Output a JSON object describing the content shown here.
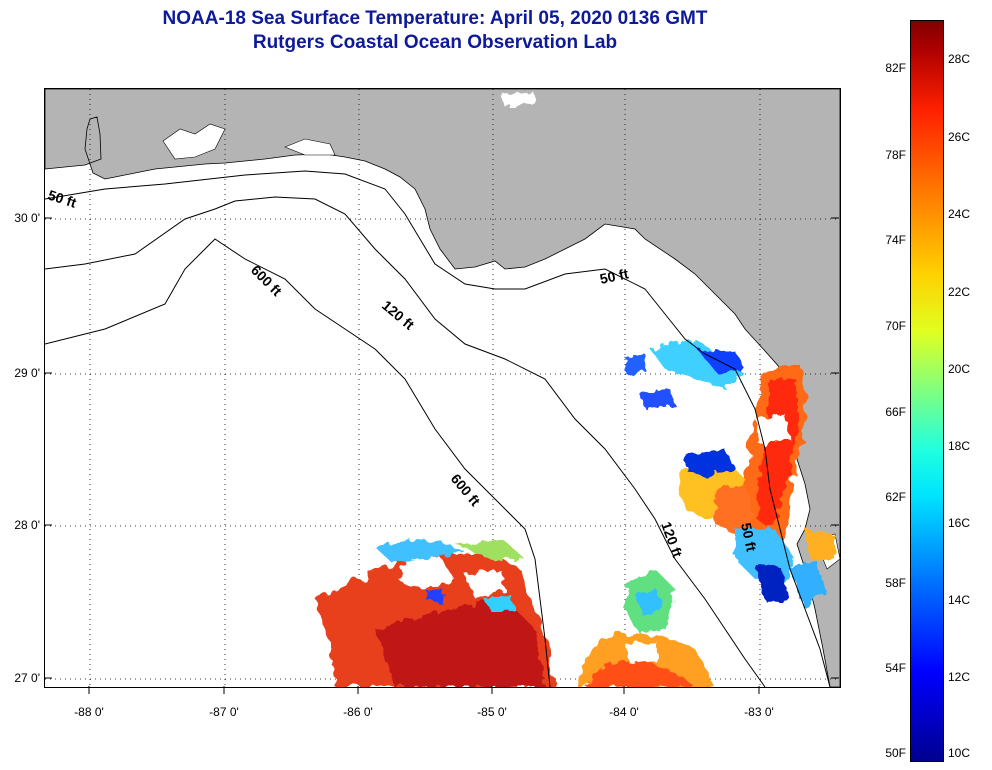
{
  "header": {
    "title": "NOAA-18 Sea Surface Temperature:  April 05, 2020 0136 GMT",
    "subtitle": "Rutgers Coastal Ocean Observation Lab"
  },
  "map": {
    "lat_labels": [
      "30 0'",
      "29 0'",
      "28 0'",
      "27 0'"
    ],
    "lon_labels": [
      "-88 0'",
      "-87 0'",
      "-86 0'",
      "-85 0'",
      "-84 0'",
      "-83 0'"
    ],
    "contour_labels": [
      "50 ft",
      "600 ft",
      "120 ft",
      "50 ft",
      "600 ft",
      "120 ft",
      "50 ft"
    ],
    "colors": {
      "land": "#b4b4b4",
      "ocean": "#ffffff"
    }
  },
  "colorbar": {
    "fahrenheit": [
      "82F",
      "78F",
      "74F",
      "70F",
      "66F",
      "62F",
      "58F",
      "54F",
      "50F"
    ],
    "celsius": [
      "28C",
      "26C",
      "24C",
      "22C",
      "20C",
      "18C",
      "16C",
      "14C",
      "12C",
      "10C"
    ]
  }
}
